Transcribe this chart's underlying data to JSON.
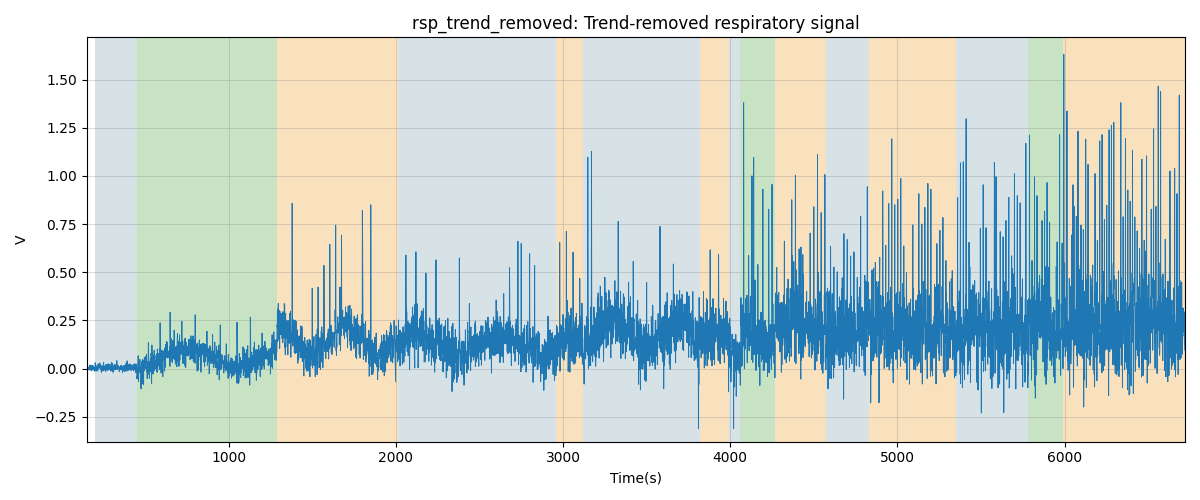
{
  "title": "rsp_trend_removed: Trend-removed respiratory signal",
  "xlabel": "Time(s)",
  "ylabel": "V",
  "xlim": [
    150,
    6720
  ],
  "ylim": [
    -0.38,
    1.72
  ],
  "line_color": "#1f77b4",
  "line_width": 0.7,
  "bg_bands": [
    {
      "xmin": 200,
      "xmax": 450,
      "color": "#aec6cf",
      "alpha": 0.5
    },
    {
      "xmin": 450,
      "xmax": 1290,
      "color": "#90c98a",
      "alpha": 0.5
    },
    {
      "xmin": 1290,
      "xmax": 2010,
      "color": "#f5c98a",
      "alpha": 0.55
    },
    {
      "xmin": 2010,
      "xmax": 2960,
      "color": "#aec6cf",
      "alpha": 0.5
    },
    {
      "xmin": 2960,
      "xmax": 3120,
      "color": "#f5c98a",
      "alpha": 0.55
    },
    {
      "xmin": 3120,
      "xmax": 3820,
      "color": "#aec6cf",
      "alpha": 0.5
    },
    {
      "xmin": 3820,
      "xmax": 3990,
      "color": "#f5c98a",
      "alpha": 0.55
    },
    {
      "xmin": 3990,
      "xmax": 4060,
      "color": "#aec6cf",
      "alpha": 0.5
    },
    {
      "xmin": 4060,
      "xmax": 4270,
      "color": "#90c98a",
      "alpha": 0.5
    },
    {
      "xmin": 4270,
      "xmax": 4570,
      "color": "#f5c98a",
      "alpha": 0.55
    },
    {
      "xmin": 4570,
      "xmax": 4830,
      "color": "#aec6cf",
      "alpha": 0.5
    },
    {
      "xmin": 4830,
      "xmax": 5350,
      "color": "#f5c98a",
      "alpha": 0.55
    },
    {
      "xmin": 5350,
      "xmax": 5780,
      "color": "#aec6cf",
      "alpha": 0.5
    },
    {
      "xmin": 5780,
      "xmax": 5990,
      "color": "#90c98a",
      "alpha": 0.5
    },
    {
      "xmin": 5990,
      "xmax": 6720,
      "color": "#f5c98a",
      "alpha": 0.55
    }
  ],
  "title_fontsize": 12
}
